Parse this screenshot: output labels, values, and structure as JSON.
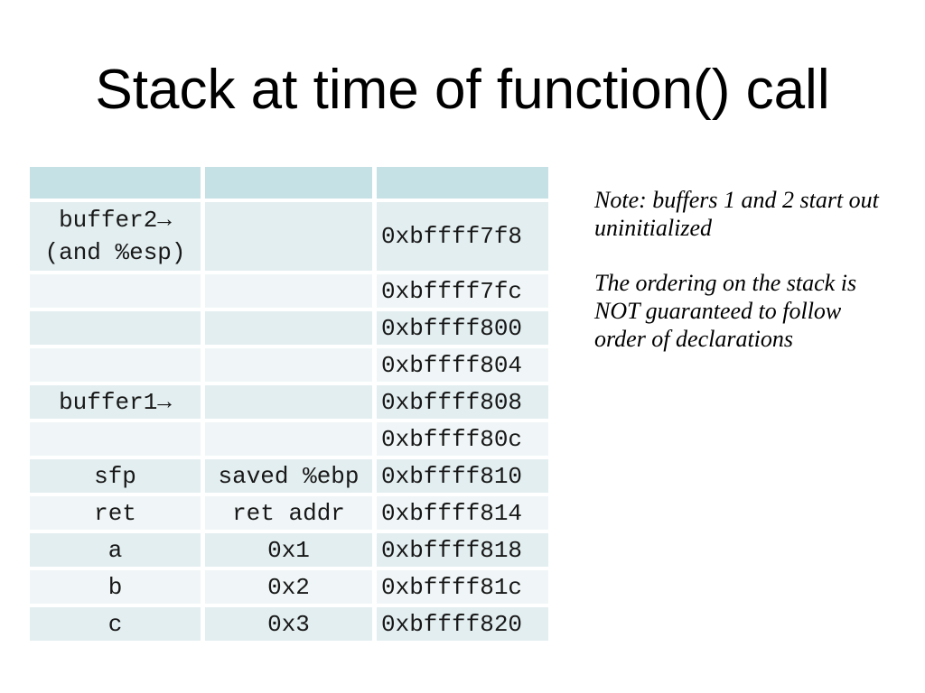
{
  "slide": {
    "title": "Stack at time of function() call",
    "table": {
      "header": {
        "c1": "",
        "c2": "",
        "c3": ""
      },
      "rows": [
        {
          "c1": "buffer2→\n(and %esp)",
          "c2": "",
          "c3": "0xbffff7f8"
        },
        {
          "c1": "",
          "c2": "",
          "c3": "0xbffff7fc"
        },
        {
          "c1": "",
          "c2": "",
          "c3": "0xbffff800"
        },
        {
          "c1": "",
          "c2": "",
          "c3": "0xbffff804"
        },
        {
          "c1": "buffer1→",
          "c2": "",
          "c3": "0xbffff808"
        },
        {
          "c1": "",
          "c2": "",
          "c3": "0xbffff80c"
        },
        {
          "c1": "sfp",
          "c2": "saved %ebp",
          "c3": "0xbffff810"
        },
        {
          "c1": "ret",
          "c2": "ret addr",
          "c3": "0xbffff814"
        },
        {
          "c1": "a",
          "c2": "0x1",
          "c3": "0xbffff818"
        },
        {
          "c1": "b",
          "c2": "0x2",
          "c3": "0xbffff81c"
        },
        {
          "c1": "c",
          "c2": "0x3",
          "c3": "0xbffff820"
        }
      ]
    },
    "notes": {
      "note1": "Note: buffers 1 and 2 start out\nuninitialized",
      "note2": "The ordering on the stack is\nNOT guaranteed to follow\norder of declarations"
    }
  },
  "colors": {
    "header_fill": "#c6e1e5",
    "band_dark": "#e3eef0",
    "band_light": "#f0f6f7",
    "text": "#181818",
    "background": "#ffffff"
  }
}
